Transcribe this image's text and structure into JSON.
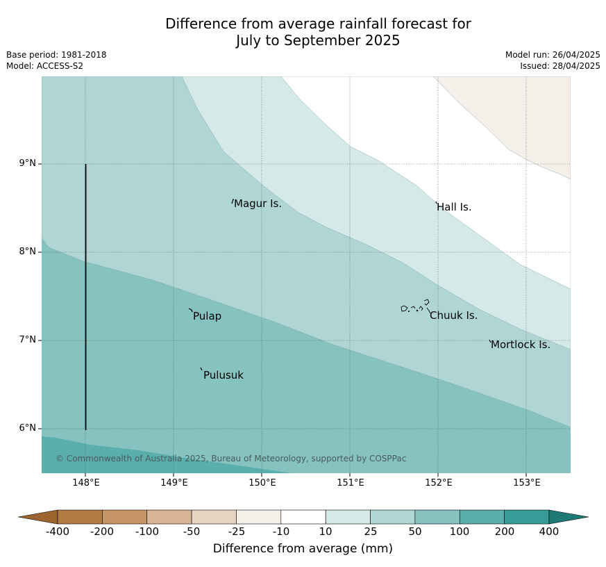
{
  "header": {
    "title_line1": "Difference from average rainfall forecast for",
    "title_line2": "July to September 2025",
    "base_period": "Base period: 1981-2018",
    "model": "Model: ACCESS-S2",
    "model_run": "Model run: 26/04/2025",
    "issued": "Issued: 28/04/2025"
  },
  "map": {
    "lat_labels": [
      "9°N",
      "8°N",
      "7°N",
      "6°N"
    ],
    "lon_labels": [
      "148°E",
      "149°E",
      "150°E",
      "151°E",
      "152°E",
      "153°E"
    ],
    "places": [
      {
        "name": "Magur Is."
      },
      {
        "name": "Hall Is."
      },
      {
        "name": "Pulap"
      },
      {
        "name": "Chuuk Is."
      },
      {
        "name": "Mortlock Is."
      },
      {
        "name": "Pulusuk"
      }
    ],
    "copyright": "© Commonwealth of Australia 2025, Bureau of Meteorology, supported by COSPPac",
    "colors": {
      "band_10_25": "#d5e9e8",
      "band_25_50": "#afd6d4",
      "band_50_100": "#85c2c0",
      "band_100_200": "#5aaeac",
      "band_minus25_minus10": "#f4efe9",
      "band_minus10_10": "#ffffff"
    }
  },
  "colorbar": {
    "ticks": [
      "-400",
      "-200",
      "-100",
      "-50",
      "-25",
      "-10",
      "10",
      "25",
      "50",
      "100",
      "200",
      "400"
    ],
    "colors": [
      "#9c6530",
      "#b27a44",
      "#c69567",
      "#d7b596",
      "#e6d3c2",
      "#f4efe9",
      "#ffffff",
      "#d5e9e8",
      "#afd6d4",
      "#85c2c0",
      "#5aaeac",
      "#369c98",
      "#1f7a75"
    ],
    "label": "Difference from average (mm)"
  }
}
